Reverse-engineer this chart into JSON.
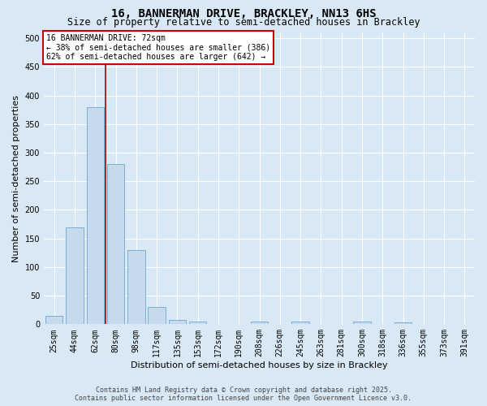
{
  "title_line1": "16, BANNERMAN DRIVE, BRACKLEY, NN13 6HS",
  "title_line2": "Size of property relative to semi-detached houses in Brackley",
  "xlabel": "Distribution of semi-detached houses by size in Brackley",
  "ylabel": "Number of semi-detached properties",
  "categories": [
    "25sqm",
    "44sqm",
    "62sqm",
    "80sqm",
    "98sqm",
    "117sqm",
    "135sqm",
    "153sqm",
    "172sqm",
    "190sqm",
    "208sqm",
    "226sqm",
    "245sqm",
    "263sqm",
    "281sqm",
    "300sqm",
    "318sqm",
    "336sqm",
    "355sqm",
    "373sqm",
    "391sqm"
  ],
  "bar_heights": [
    15,
    170,
    380,
    280,
    130,
    30,
    8,
    5,
    0,
    0,
    5,
    0,
    5,
    0,
    0,
    5,
    0,
    3,
    0,
    0,
    0
  ],
  "bar_color": "#c8d9ee",
  "bar_edge_color": "#7aafd4",
  "property_line_color": "#aa0000",
  "annotation_text": "16 BANNERMAN DRIVE: 72sqm\n← 38% of semi-detached houses are smaller (386)\n62% of semi-detached houses are larger (642) →",
  "annotation_box_color": "#ffffff",
  "annotation_box_edge": "#cc0000",
  "ylim": [
    0,
    510
  ],
  "yticks": [
    0,
    50,
    100,
    150,
    200,
    250,
    300,
    350,
    400,
    450,
    500
  ],
  "background_color": "#d8e8f5",
  "plot_bg_color": "#d8e8f5",
  "footer_line1": "Contains HM Land Registry data © Crown copyright and database right 2025.",
  "footer_line2": "Contains public sector information licensed under the Open Government Licence v3.0.",
  "grid_color": "#ffffff",
  "title_fontsize": 10,
  "subtitle_fontsize": 8.5,
  "axis_label_fontsize": 8,
  "tick_fontsize": 7,
  "annotation_fontsize": 7,
  "footer_fontsize": 6
}
